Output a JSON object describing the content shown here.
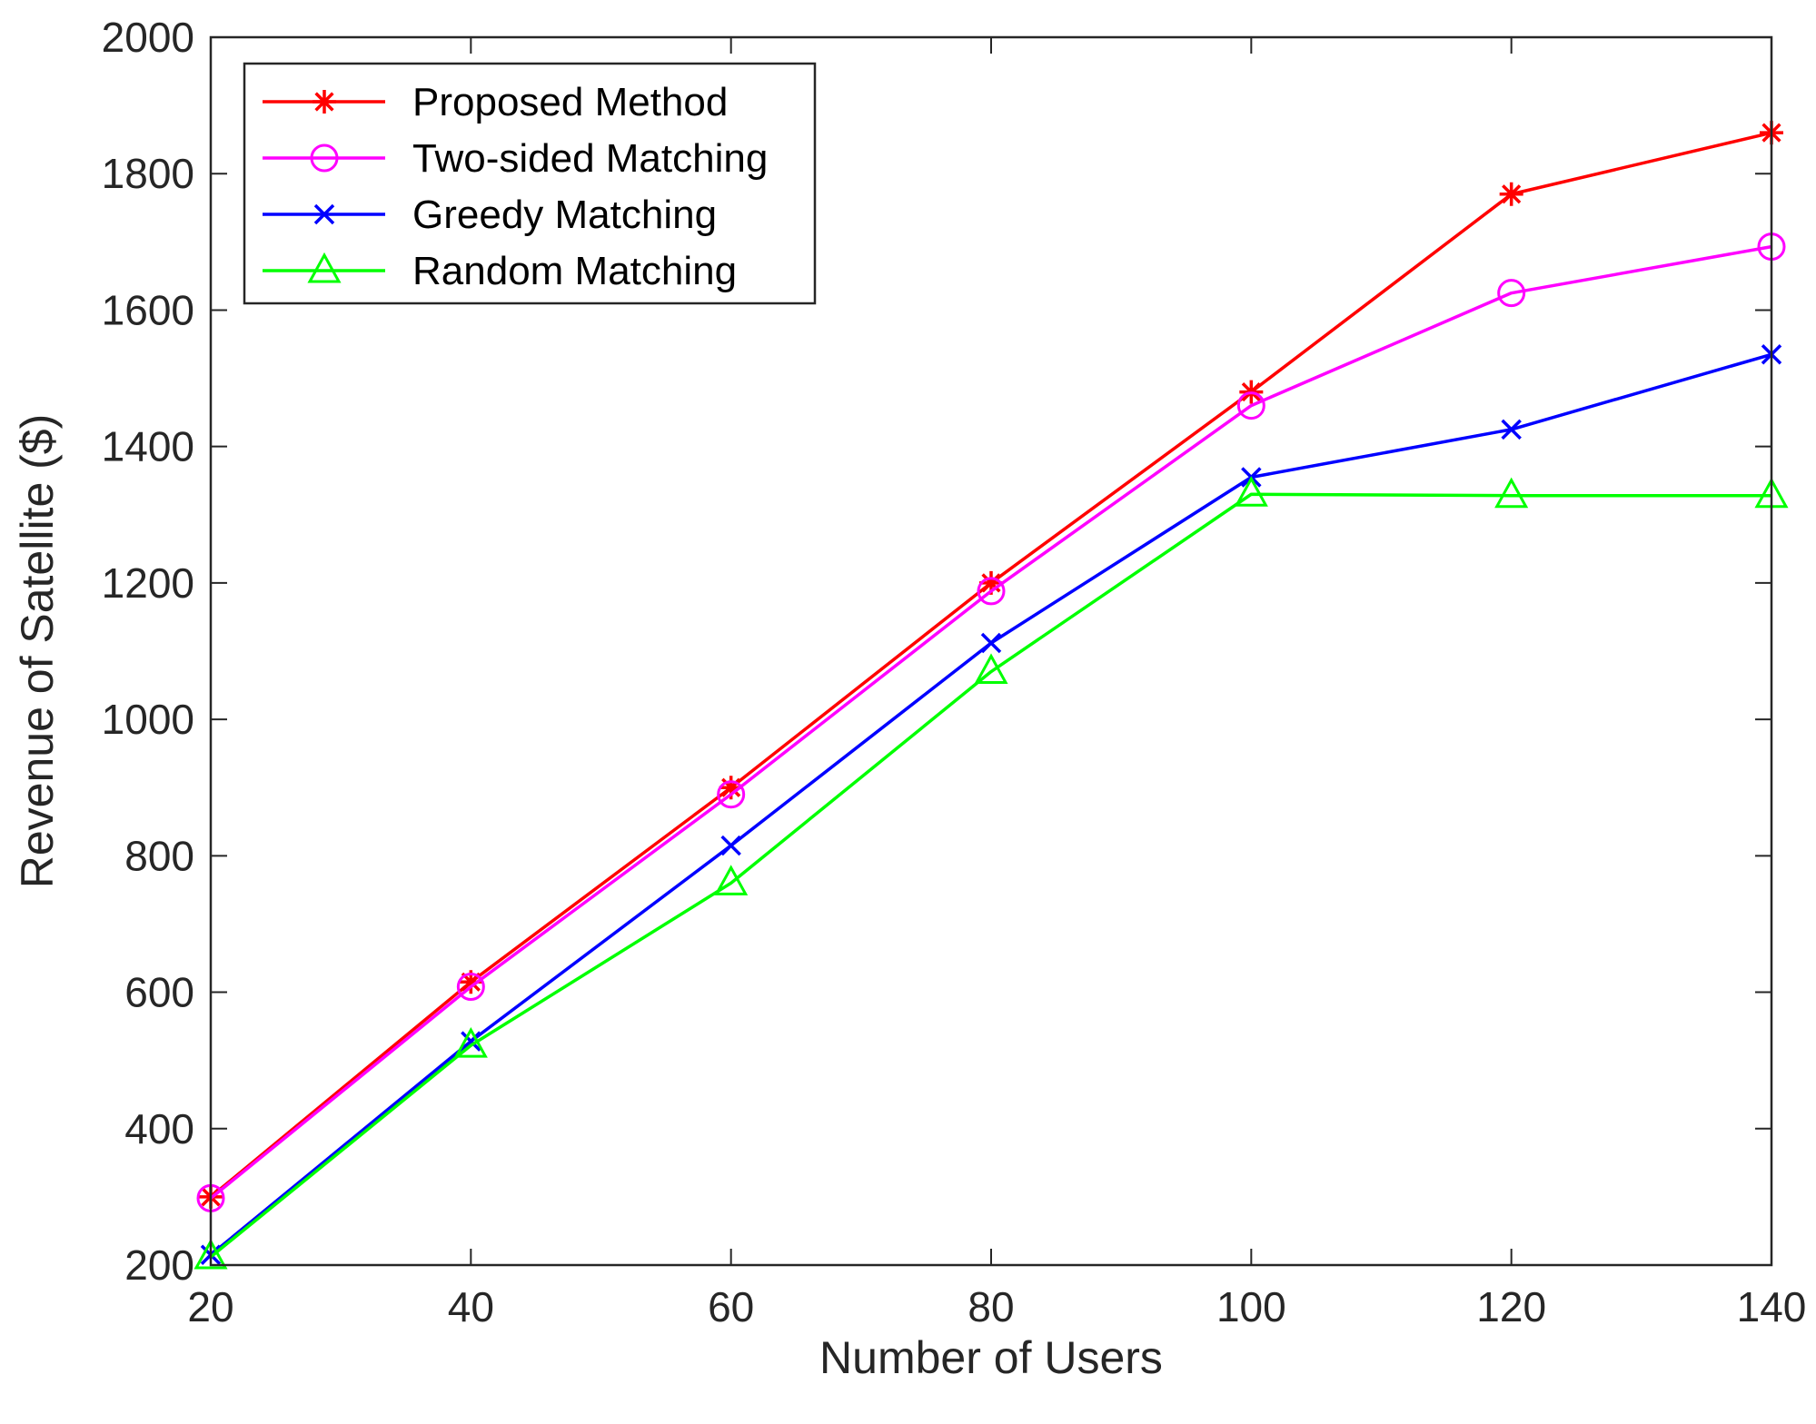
{
  "chart_data": {
    "type": "line",
    "title": "",
    "xlabel": "Number of Users",
    "ylabel": "Revenue of Satellite ($)",
    "xlim": [
      20,
      140
    ],
    "ylim": [
      200,
      2000
    ],
    "x": [
      20,
      40,
      60,
      80,
      100,
      120,
      140
    ],
    "xticks": [
      20,
      40,
      60,
      80,
      100,
      120,
      140
    ],
    "yticks": [
      200,
      400,
      600,
      800,
      1000,
      1200,
      1400,
      1600,
      1800,
      2000
    ],
    "grid": false,
    "legend_position": "top-left",
    "series": [
      {
        "name": "Proposed Method",
        "color": "#ff0000",
        "marker": "asterisk",
        "values": [
          300,
          615,
          900,
          1200,
          1480,
          1770,
          1860
        ]
      },
      {
        "name": "Two-sided Matching",
        "color": "#ff00ff",
        "marker": "circle",
        "values": [
          298,
          608,
          890,
          1188,
          1460,
          1625,
          1693
        ]
      },
      {
        "name": "Greedy Matching",
        "color": "#0000ff",
        "marker": "x",
        "values": [
          215,
          528,
          815,
          1112,
          1355,
          1425,
          1535
        ]
      },
      {
        "name": "Random Matching",
        "color": "#00ff00",
        "marker": "triangle",
        "values": [
          212,
          522,
          760,
          1070,
          1330,
          1328,
          1328
        ]
      }
    ]
  }
}
